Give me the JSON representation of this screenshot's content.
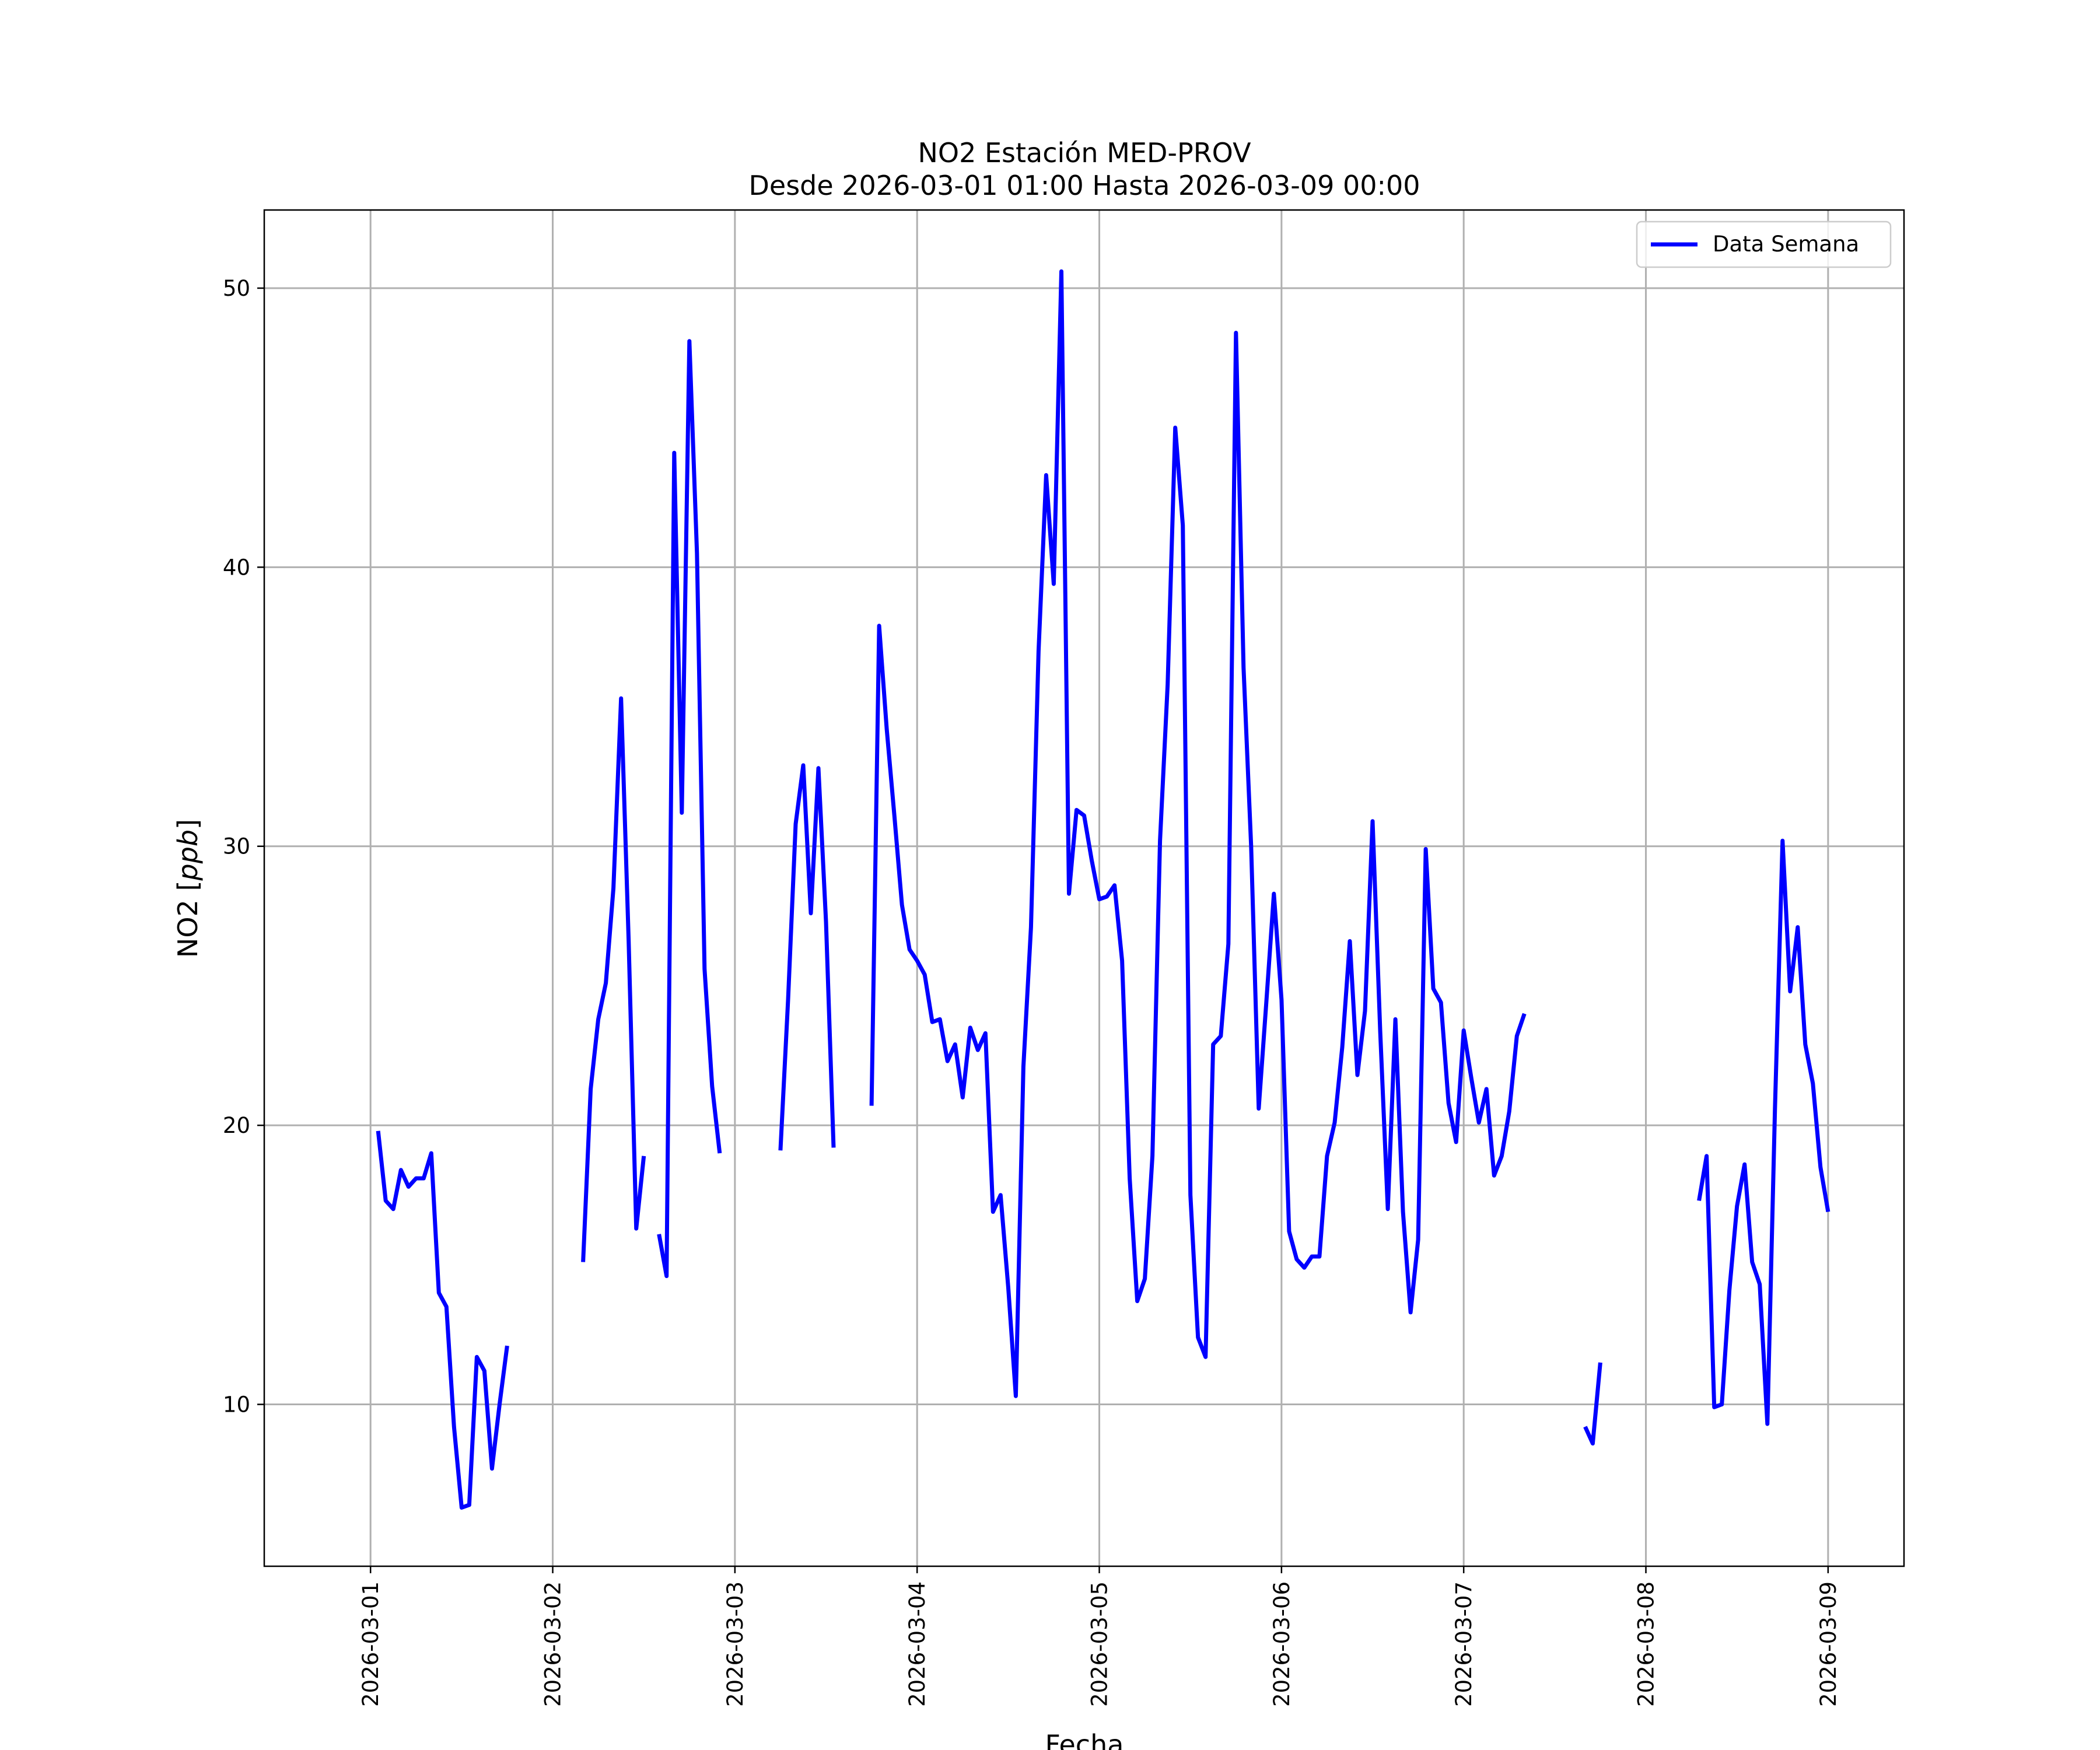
{
  "chart_data": {
    "type": "line",
    "title": "NO2 Estación MED-PROV",
    "subtitle": "Desde 2026-03-01 01:00 Hasta 2026-03-09 00:00",
    "xlabel": "Fecha",
    "ylabel": "NO2 [ppb]",
    "ylabel_unit": "ppb",
    "xlim": [
      "2026-02-28T10:00",
      "2026-03-09T10:00"
    ],
    "ylim": [
      4.2,
      52.8
    ],
    "x_ticks": [
      "2026-03-01",
      "2026-03-02",
      "2026-03-03",
      "2026-03-04",
      "2026-03-05",
      "2026-03-06",
      "2026-03-07",
      "2026-03-08",
      "2026-03-09"
    ],
    "y_ticks": [
      10,
      20,
      30,
      40,
      50
    ],
    "grid": true,
    "legend": {
      "position": "top-right",
      "entries": [
        "Data Semana"
      ]
    },
    "colors": {
      "series": "#0000ff"
    },
    "series": [
      {
        "name": "Data Semana",
        "segments": [
          {
            "x": [
              "2026-03-01T01:00",
              "2026-03-01T02:00",
              "2026-03-01T03:00",
              "2026-03-01T04:00",
              "2026-03-01T05:00",
              "2026-03-01T06:00",
              "2026-03-01T07:00",
              "2026-03-01T08:00",
              "2026-03-01T09:00",
              "2026-03-01T10:00",
              "2026-03-01T11:00",
              "2026-03-01T12:00",
              "2026-03-01T13:00",
              "2026-03-01T14:00",
              "2026-03-01T15:00",
              "2026-03-01T16:00",
              "2026-03-01T17:00",
              "2026-03-01T18:00"
            ],
            "y": [
              19.8,
              17.3,
              17.0,
              18.4,
              17.8,
              18.1,
              18.1,
              19.0,
              14.0,
              13.5,
              9.2,
              6.3,
              6.4,
              11.7,
              11.2,
              7.7,
              10.0,
              12.1
            ]
          },
          {
            "x": [
              "2026-03-02T04:00",
              "2026-03-02T05:00",
              "2026-03-02T06:00",
              "2026-03-02T07:00",
              "2026-03-02T08:00",
              "2026-03-02T09:00",
              "2026-03-02T10:00",
              "2026-03-02T11:00",
              "2026-03-02T12:00"
            ],
            "y": [
              15.1,
              21.3,
              23.8,
              25.1,
              28.5,
              35.3,
              26.6,
              16.3,
              18.9
            ]
          },
          {
            "x": [
              "2026-03-02T14:00",
              "2026-03-02T15:00",
              "2026-03-02T16:00",
              "2026-03-02T17:00",
              "2026-03-02T18:00",
              "2026-03-02T19:00",
              "2026-03-02T20:00",
              "2026-03-02T21:00",
              "2026-03-02T22:00"
            ],
            "y": [
              16.1,
              14.6,
              44.1,
              31.2,
              48.1,
              40.5,
              25.6,
              21.4,
              19.0
            ]
          },
          {
            "x": [
              "2026-03-03T06:00",
              "2026-03-03T07:00",
              "2026-03-03T08:00",
              "2026-03-03T09:00",
              "2026-03-03T10:00",
              "2026-03-03T11:00",
              "2026-03-03T12:00",
              "2026-03-03T13:00"
            ],
            "y": [
              19.1,
              24.5,
              30.8,
              32.9,
              27.6,
              32.8,
              27.3,
              19.2
            ]
          },
          {
            "x": [
              "2026-03-03T18:00",
              "2026-03-03T19:00",
              "2026-03-03T20:00",
              "2026-03-03T21:00",
              "2026-03-03T22:00",
              "2026-03-03T23:00",
              "2026-03-04T00:00",
              "2026-03-04T01:00",
              "2026-03-04T02:00",
              "2026-03-04T03:00",
              "2026-03-04T04:00",
              "2026-03-04T05:00",
              "2026-03-04T06:00",
              "2026-03-04T07:00",
              "2026-03-04T08:00",
              "2026-03-04T09:00",
              "2026-03-04T10:00",
              "2026-03-04T11:00",
              "2026-03-04T12:00",
              "2026-03-04T13:00",
              "2026-03-04T14:00",
              "2026-03-04T15:00",
              "2026-03-04T16:00",
              "2026-03-04T17:00",
              "2026-03-04T18:00",
              "2026-03-04T19:00",
              "2026-03-04T20:00",
              "2026-03-04T21:00",
              "2026-03-04T22:00",
              "2026-03-04T23:00",
              "2026-03-05T00:00",
              "2026-03-05T01:00",
              "2026-03-05T02:00",
              "2026-03-05T03:00",
              "2026-03-05T04:00",
              "2026-03-05T05:00",
              "2026-03-05T06:00",
              "2026-03-05T07:00",
              "2026-03-05T08:00",
              "2026-03-05T09:00",
              "2026-03-05T10:00",
              "2026-03-05T11:00",
              "2026-03-05T12:00",
              "2026-03-05T13:00",
              "2026-03-05T14:00",
              "2026-03-05T15:00",
              "2026-03-05T16:00",
              "2026-03-05T17:00",
              "2026-03-05T18:00",
              "2026-03-05T19:00",
              "2026-03-05T20:00",
              "2026-03-05T21:00",
              "2026-03-05T22:00",
              "2026-03-05T23:00",
              "2026-03-06T00:00",
              "2026-03-06T01:00",
              "2026-03-06T02:00",
              "2026-03-06T03:00",
              "2026-03-06T04:00",
              "2026-03-06T05:00",
              "2026-03-06T06:00",
              "2026-03-06T07:00",
              "2026-03-06T08:00",
              "2026-03-06T09:00",
              "2026-03-06T10:00",
              "2026-03-06T11:00",
              "2026-03-06T12:00",
              "2026-03-06T13:00",
              "2026-03-06T14:00",
              "2026-03-06T15:00",
              "2026-03-06T16:00",
              "2026-03-06T17:00",
              "2026-03-06T18:00",
              "2026-03-06T19:00",
              "2026-03-06T20:00",
              "2026-03-06T21:00",
              "2026-03-06T22:00",
              "2026-03-06T23:00",
              "2026-03-07T00:00",
              "2026-03-07T01:00",
              "2026-03-07T02:00",
              "2026-03-07T03:00",
              "2026-03-07T04:00",
              "2026-03-07T05:00",
              "2026-03-07T06:00",
              "2026-03-07T07:00",
              "2026-03-07T08:00"
            ],
            "y": [
              20.7,
              37.9,
              34.2,
              31.1,
              27.9,
              26.3,
              25.9,
              25.4,
              23.7,
              23.8,
              22.3,
              22.9,
              21.0,
              23.5,
              22.7,
              23.3,
              16.9,
              17.5,
              14.2,
              10.3,
              22.1,
              27.1,
              37.0,
              43.3,
              39.4,
              50.6,
              28.3,
              31.3,
              31.1,
              29.5,
              28.1,
              28.2,
              28.6,
              25.9,
              18.1,
              13.7,
              14.5,
              18.9,
              30.2,
              35.8,
              45.0,
              41.5,
              17.5,
              12.4,
              11.7,
              22.9,
              23.2,
              26.5,
              48.4,
              36.4,
              30.0,
              20.6,
              24.4,
              28.3,
              24.5,
              16.2,
              15.2,
              14.9,
              15.3,
              15.3,
              18.9,
              20.1,
              22.8,
              26.6,
              21.8,
              24.1,
              30.9,
              23.4,
              17.0,
              23.8,
              16.9,
              13.3,
              15.9,
              29.9,
              24.9,
              24.4,
              20.8,
              19.4,
              23.4,
              21.7,
              20.1,
              21.3,
              18.2,
              18.9,
              20.5,
              23.2,
              24.0
            ]
          },
          {
            "x": [
              "2026-03-07T16:00",
              "2026-03-07T17:00",
              "2026-03-07T18:00"
            ],
            "y": [
              9.2,
              8.6,
              11.5
            ]
          },
          {
            "x": [
              "2026-03-08T07:00",
              "2026-03-08T08:00",
              "2026-03-08T09:00",
              "2026-03-08T10:00",
              "2026-03-08T11:00",
              "2026-03-08T12:00",
              "2026-03-08T13:00",
              "2026-03-08T14:00",
              "2026-03-08T15:00",
              "2026-03-08T16:00",
              "2026-03-08T17:00",
              "2026-03-08T18:00",
              "2026-03-08T19:00",
              "2026-03-08T20:00",
              "2026-03-08T21:00",
              "2026-03-08T22:00",
              "2026-03-08T23:00",
              "2026-03-09T00:00"
            ],
            "y": [
              17.3,
              18.9,
              9.9,
              10.0,
              14.1,
              17.1,
              18.6,
              15.1,
              14.3,
              9.3,
              20.6,
              30.2,
              24.8,
              27.1,
              22.9,
              21.5,
              18.5,
              16.9
            ]
          }
        ]
      }
    ]
  }
}
